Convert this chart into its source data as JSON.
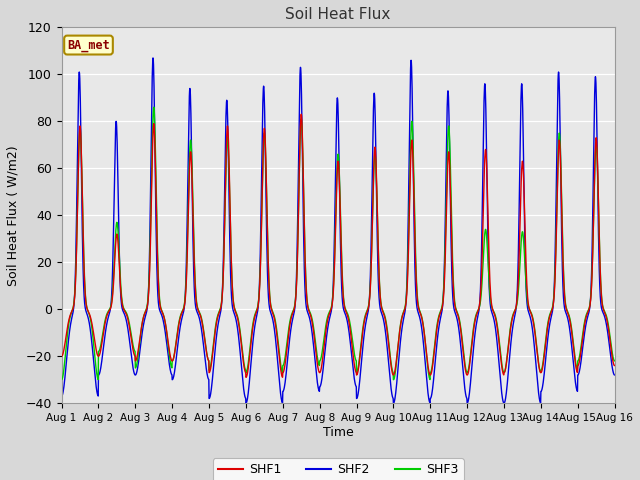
{
  "title": "Soil Heat Flux",
  "xlabel": "Time",
  "ylabel": "Soil Heat Flux ( W/m2)",
  "ylim": [
    -40,
    120
  ],
  "yticks": [
    -40,
    -20,
    0,
    20,
    40,
    60,
    80,
    100,
    120
  ],
  "colors": {
    "SHF1": "#dd0000",
    "SHF2": "#0000dd",
    "SHF3": "#00cc00"
  },
  "legend_label": "BA_met",
  "legend_bg": "#ffffcc",
  "legend_border": "#aa8800",
  "fig_bg": "#d8d8d8",
  "plot_bg": "#e8e8e8",
  "linewidth": 1.0,
  "n_days": 15,
  "points_per_day": 144,
  "shf2_day_amps": [
    101,
    80,
    107,
    94,
    89,
    95,
    103,
    90,
    92,
    106,
    93,
    96,
    96,
    101,
    99
  ],
  "shf2_night_amps": [
    37,
    28,
    28,
    30,
    38,
    40,
    35,
    33,
    38,
    40,
    38,
    40,
    40,
    35,
    28
  ],
  "shf1_day_amps": [
    78,
    32,
    79,
    67,
    78,
    77,
    83,
    63,
    69,
    72,
    67,
    68,
    63,
    72,
    73
  ],
  "shf1_night_amps": [
    20,
    20,
    22,
    22,
    27,
    29,
    27,
    27,
    28,
    28,
    28,
    28,
    27,
    27,
    24
  ],
  "shf3_day_amps": [
    77,
    37,
    86,
    72,
    73,
    75,
    81,
    66,
    66,
    80,
    78,
    34,
    33,
    75,
    70
  ],
  "shf3_night_amps": [
    30,
    18,
    25,
    22,
    26,
    27,
    24,
    22,
    27,
    30,
    27,
    27,
    27,
    26,
    22
  ]
}
